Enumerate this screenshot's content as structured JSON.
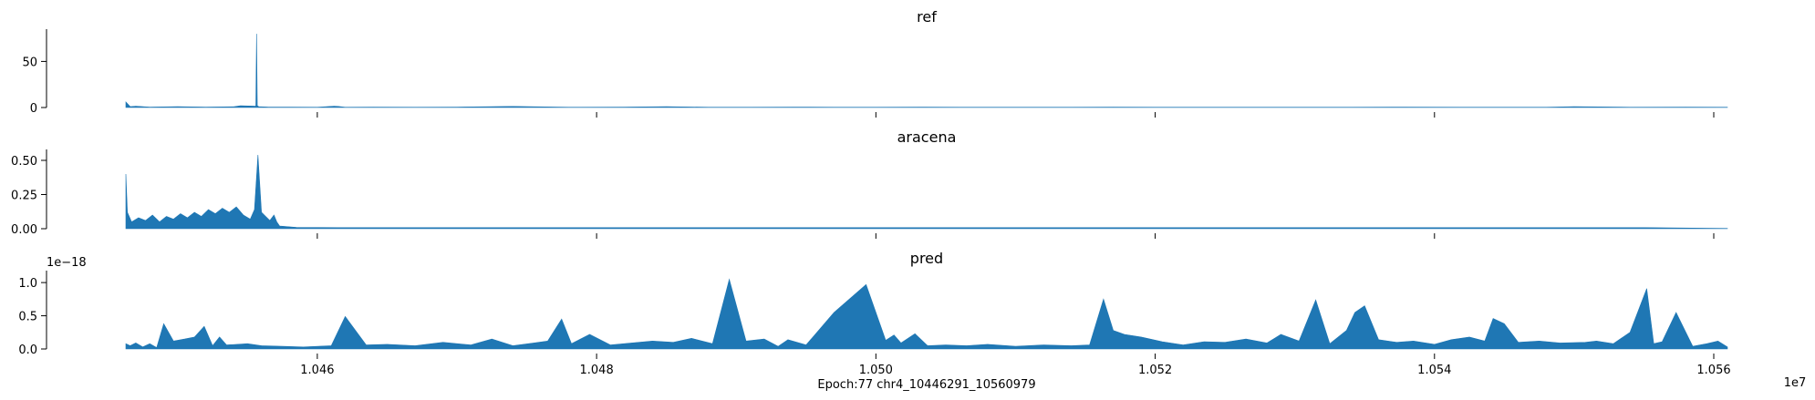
{
  "figure": {
    "xlabel": "Epoch:77 chr4_10446291_10560979",
    "x_offset_label": "1e7",
    "fill_color": "#1f77b4"
  },
  "chart_data": [
    {
      "type": "area",
      "title": "ref",
      "xlim": [
        10446291,
        10560979
      ],
      "ylim": [
        0,
        85
      ],
      "yticks": [
        0,
        50
      ],
      "ytick_labels": [
        "0",
        "50"
      ],
      "xticks": [
        10460000,
        10480000,
        10500000,
        10520000,
        10540000,
        10560000
      ],
      "x": [
        10446291,
        10446600,
        10447000,
        10448000,
        10450000,
        10452000,
        10454000,
        10454500,
        10455600,
        10455650,
        10455700,
        10455800,
        10456500,
        10458000,
        10460000,
        10461200,
        10461500,
        10462000,
        10464000,
        10467000,
        10470000,
        10474000,
        10478000,
        10482000,
        10485000,
        10488000,
        10491000,
        10494000,
        10497000,
        10500000,
        10503000,
        10506000,
        10510000,
        10514000,
        10517000,
        10520000,
        10523000,
        10526000,
        10530000,
        10534000,
        10538000,
        10542000,
        10546000,
        10548000,
        10550000,
        10554000,
        10558000,
        10560979
      ],
      "values": [
        6,
        1,
        1.5,
        0.5,
        1,
        0.5,
        0.8,
        2,
        1.5,
        80,
        2,
        1,
        0.5,
        0.5,
        0.3,
        1.5,
        1.2,
        0.3,
        0.5,
        0.3,
        0.5,
        1.2,
        0.3,
        0.5,
        1,
        0.3,
        0.3,
        0.5,
        0.3,
        0.3,
        0.5,
        0.3,
        0.3,
        0.3,
        0.5,
        0.3,
        0.3,
        0.3,
        0.3,
        0.3,
        0.5,
        0.3,
        0.3,
        0.3,
        1,
        0.3,
        0.5,
        0.3
      ]
    },
    {
      "type": "area",
      "title": "aracena",
      "xlim": [
        10446291,
        10560979
      ],
      "ylim": [
        0,
        0.58
      ],
      "yticks": [
        0.0,
        0.25,
        0.5
      ],
      "ytick_labels": [
        "0.00",
        "0.25",
        "0.50"
      ],
      "xticks": [
        10460000,
        10480000,
        10500000,
        10520000,
        10540000,
        10560000
      ],
      "x": [
        10446291,
        10446400,
        10446700,
        10447200,
        10447700,
        10448200,
        10448700,
        10449200,
        10449700,
        10450200,
        10450700,
        10451200,
        10451700,
        10452200,
        10452700,
        10453200,
        10453700,
        10454200,
        10454700,
        10455200,
        10455500,
        10455750,
        10456000,
        10456300,
        10456600,
        10456900,
        10457100,
        10457300,
        10458500,
        10461500,
        10470000,
        10487000,
        10490500,
        10492500,
        10494500,
        10499000,
        10507000,
        10518000,
        10521000,
        10543000,
        10550000,
        10555000,
        10560979
      ],
      "values": [
        0.4,
        0.12,
        0.05,
        0.08,
        0.06,
        0.1,
        0.05,
        0.09,
        0.07,
        0.11,
        0.08,
        0.12,
        0.09,
        0.14,
        0.11,
        0.15,
        0.12,
        0.16,
        0.1,
        0.07,
        0.14,
        0.54,
        0.12,
        0.09,
        0.06,
        0.1,
        0.05,
        0.02,
        0.01,
        0.008,
        0.008,
        0.008,
        0.008,
        0.008,
        0.008,
        0.008,
        0.008,
        0.008,
        0.008,
        0.008,
        0.008,
        0.008,
        0.002
      ]
    },
    {
      "type": "area",
      "title": "pred",
      "offset_label": "1e−18",
      "xlim": [
        10446291,
        10560979
      ],
      "ylim": [
        0,
        1.18
      ],
      "yticks": [
        0.0,
        0.5,
        1.0
      ],
      "ytick_labels": [
        "0.0",
        "0.5",
        "1.0"
      ],
      "xticks": [
        10460000,
        10480000,
        10500000,
        10520000,
        10540000,
        10560000
      ],
      "xtick_labels": [
        "1.046",
        "1.048",
        "1.050",
        "1.052",
        "1.054",
        "1.056"
      ],
      "x": [
        10446291,
        10446600,
        10447000,
        10447500,
        10448000,
        10448500,
        10449000,
        10449700,
        10450500,
        10451200,
        10451900,
        10452500,
        10453000,
        10453500,
        10455000,
        10456000,
        10457500,
        10459000,
        10461000,
        10462000,
        10463500,
        10465000,
        10467000,
        10469000,
        10471000,
        10472500,
        10474000,
        10475500,
        10476500,
        10477500,
        10478200,
        10479500,
        10481000,
        10482500,
        10484000,
        10485500,
        10486800,
        10488300,
        10489500,
        10490700,
        10492000,
        10493000,
        10493700,
        10495000,
        10497000,
        10499300,
        10500700,
        10501300,
        10501800,
        10502800,
        10503700,
        10505000,
        10506500,
        10508000,
        10510000,
        10512000,
        10514000,
        10515300,
        10516300,
        10517000,
        10517800,
        10519000,
        10520500,
        10522000,
        10523500,
        10525000,
        10526500,
        10528000,
        10529000,
        10530300,
        10531500,
        10532500,
        10533700,
        10534300,
        10535000,
        10536000,
        10537300,
        10538500,
        10540000,
        10541200,
        10542500,
        10543600,
        10544200,
        10545000,
        10546000,
        10547500,
        10549000,
        10550800,
        10551600,
        10552800,
        10554000,
        10555200,
        10555700,
        10556300,
        10557300,
        10558500,
        10559500,
        10560300,
        10560979
      ],
      "values": [
        0.08,
        0.05,
        0.09,
        0.03,
        0.08,
        0.02,
        0.38,
        0.12,
        0.15,
        0.18,
        0.34,
        0.05,
        0.18,
        0.06,
        0.08,
        0.05,
        0.04,
        0.03,
        0.05,
        0.49,
        0.06,
        0.07,
        0.05,
        0.1,
        0.06,
        0.15,
        0.05,
        0.09,
        0.12,
        0.45,
        0.08,
        0.22,
        0.06,
        0.09,
        0.12,
        0.1,
        0.16,
        0.08,
        1.05,
        0.12,
        0.15,
        0.04,
        0.14,
        0.06,
        0.55,
        0.97,
        0.13,
        0.21,
        0.09,
        0.23,
        0.05,
        0.06,
        0.05,
        0.07,
        0.04,
        0.06,
        0.05,
        0.06,
        0.75,
        0.28,
        0.22,
        0.18,
        0.11,
        0.06,
        0.11,
        0.1,
        0.15,
        0.09,
        0.22,
        0.12,
        0.74,
        0.08,
        0.28,
        0.55,
        0.65,
        0.14,
        0.1,
        0.12,
        0.07,
        0.14,
        0.18,
        0.12,
        0.46,
        0.38,
        0.1,
        0.12,
        0.09,
        0.1,
        0.12,
        0.08,
        0.25,
        0.91,
        0.08,
        0.11,
        0.55,
        0.04,
        0.08,
        0.12,
        0.03
      ]
    }
  ]
}
